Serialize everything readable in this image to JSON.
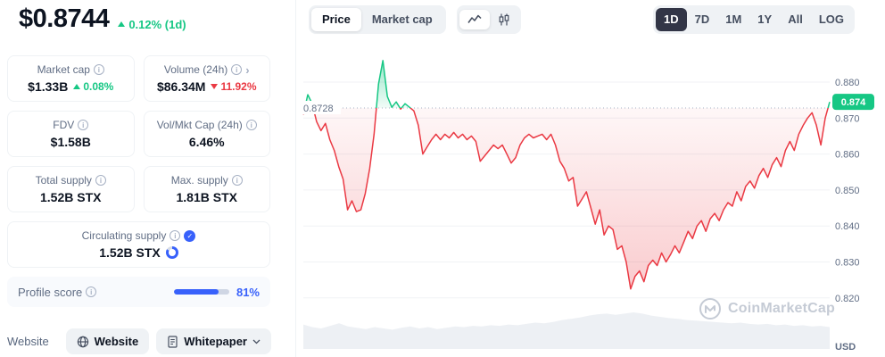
{
  "colors": {
    "up": "#16c784",
    "down": "#ea3943",
    "accent": "#3861fb"
  },
  "header": {
    "price": "$0.8744",
    "change": "0.12% (1d)"
  },
  "stats": {
    "cards": [
      {
        "label": "Market cap",
        "value": "$1.33B",
        "change": "0.08%"
      },
      {
        "label": "Volume (24h)",
        "value": "$86.34M",
        "change": "11.92%"
      },
      {
        "label": "FDV",
        "value": "$1.58B"
      },
      {
        "label": "Vol/Mkt Cap (24h)",
        "value": "6.46%"
      },
      {
        "label": "Total supply",
        "value": "1.52B STX"
      },
      {
        "label": "Max. supply",
        "value": "1.81B STX"
      }
    ],
    "circulating": {
      "label": "Circulating supply",
      "value": "1.52B STX",
      "progress_pct": 84
    },
    "profile_score": {
      "label": "Profile score",
      "value": "81%",
      "pct": 81
    }
  },
  "links": {
    "row_label": "Website",
    "website": "Website",
    "whitepaper": "Whitepaper"
  },
  "toolbar": {
    "price_tab": "Price",
    "marketcap_tab": "Market cap",
    "chart_type_icons": [
      "line-chart-icon",
      "candlestick-chart-icon"
    ],
    "ranges": [
      "1D",
      "7D",
      "1M",
      "1Y",
      "All",
      "LOG"
    ]
  },
  "watermark": "CoinMarketCap",
  "chart_data": {
    "type": "line",
    "title": "STX price (1D)",
    "ylabel": "USD",
    "y_ticks": [
      0.88,
      0.87,
      0.86,
      0.85,
      0.84,
      0.83,
      0.82
    ],
    "ylim": [
      0.8165,
      0.8885
    ],
    "baseline": 0.8728,
    "baseline_label": "0.8728",
    "last_price_label": "0.874",
    "line_color_below": "#ea3943",
    "line_color_above": "#16c784",
    "grid": true,
    "legend": false,
    "prices": [
      0.871,
      0.8765,
      0.874,
      0.869,
      0.8665,
      0.8685,
      0.864,
      0.861,
      0.8565,
      0.853,
      0.8445,
      0.847,
      0.844,
      0.8445,
      0.849,
      0.856,
      0.8655,
      0.8795,
      0.886,
      0.876,
      0.873,
      0.8745,
      0.8725,
      0.874,
      0.873,
      0.872,
      0.868,
      0.86,
      0.862,
      0.864,
      0.8655,
      0.864,
      0.8655,
      0.8645,
      0.866,
      0.8645,
      0.8655,
      0.864,
      0.865,
      0.8635,
      0.858,
      0.8595,
      0.861,
      0.8625,
      0.8615,
      0.8625,
      0.86,
      0.8575,
      0.859,
      0.8625,
      0.8645,
      0.8655,
      0.8645,
      0.865,
      0.8655,
      0.864,
      0.8655,
      0.8625,
      0.858,
      0.856,
      0.8525,
      0.8535,
      0.8455,
      0.8475,
      0.8495,
      0.845,
      0.8405,
      0.8445,
      0.8375,
      0.84,
      0.839,
      0.8335,
      0.8345,
      0.83,
      0.8225,
      0.826,
      0.8275,
      0.8245,
      0.829,
      0.8305,
      0.829,
      0.8325,
      0.83,
      0.832,
      0.8345,
      0.8325,
      0.8355,
      0.8385,
      0.8365,
      0.84,
      0.8415,
      0.8385,
      0.842,
      0.8435,
      0.8415,
      0.8445,
      0.8465,
      0.8455,
      0.8495,
      0.847,
      0.851,
      0.8525,
      0.8505,
      0.854,
      0.856,
      0.8535,
      0.857,
      0.859,
      0.8565,
      0.861,
      0.8635,
      0.861,
      0.8655,
      0.868,
      0.87,
      0.8715,
      0.868,
      0.8625,
      0.87,
      0.8745
    ],
    "volume": [
      0.38,
      0.34,
      0.32,
      0.36,
      0.4,
      0.35,
      0.33,
      0.31,
      0.34,
      0.32,
      0.3,
      0.33,
      0.35,
      0.32,
      0.34,
      0.31,
      0.33,
      0.35,
      0.34,
      0.36,
      0.35,
      0.37,
      0.36,
      0.38,
      0.37,
      0.39,
      0.41,
      0.4,
      0.42,
      0.45,
      0.47,
      0.49,
      0.52,
      0.54,
      0.55,
      0.53,
      0.55,
      0.57,
      0.55,
      0.52,
      0.5,
      0.48,
      0.47,
      0.45,
      0.44,
      0.43,
      0.42,
      0.41,
      0.4,
      0.41,
      0.39,
      0.38,
      0.39,
      0.37,
      0.38,
      0.36,
      0.37,
      0.35,
      0.36,
      0.34
    ]
  }
}
